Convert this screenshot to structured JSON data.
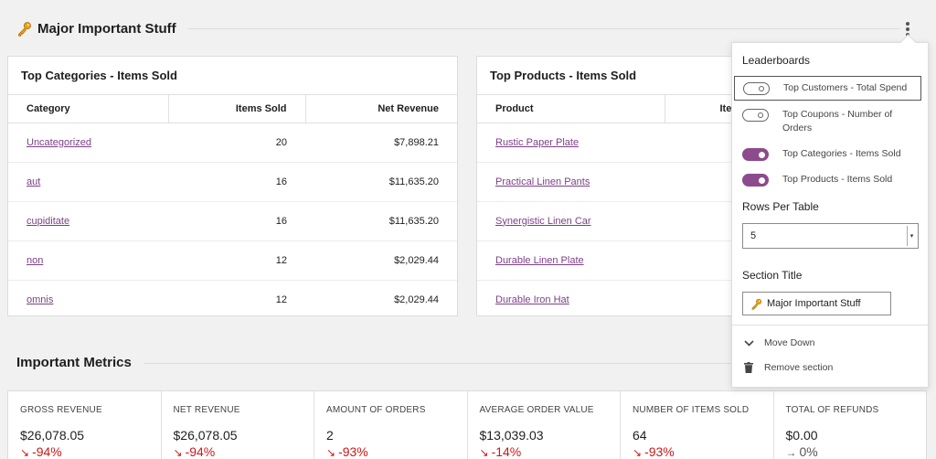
{
  "section": {
    "title": "Major Important Stuff"
  },
  "leaderboards": [
    {
      "title": "Top Categories - Items Sold",
      "columns": [
        "Category",
        "Items Sold",
        "Net Revenue"
      ],
      "rows": [
        [
          "Uncategorized",
          "20",
          "$7,898.21"
        ],
        [
          "aut",
          "16",
          "$11,635.20"
        ],
        [
          "cupiditate",
          "16",
          "$11,635.20"
        ],
        [
          "non",
          "12",
          "$2,029.44"
        ],
        [
          "omnis",
          "12",
          "$2,029.44"
        ]
      ]
    },
    {
      "title": "Top Products - Items Sold",
      "columns": [
        "Product",
        "Ite"
      ],
      "rows": [
        [
          "Rustic Paper Plate"
        ],
        [
          "Practical Linen Pants"
        ],
        [
          "Synergistic Linen Car"
        ],
        [
          "Durable Linen Plate"
        ],
        [
          "Durable Iron Hat"
        ]
      ]
    }
  ],
  "metrics": {
    "title": "Important Metrics",
    "items": [
      {
        "label": "Gross Revenue",
        "value": "$26,078.05",
        "delta": "-94%",
        "arrow": "↘"
      },
      {
        "label": "Net Revenue",
        "value": "$26,078.05",
        "delta": "-94%",
        "arrow": "↘"
      },
      {
        "label": "Amount of Orders",
        "value": "2",
        "delta": "-93%",
        "arrow": "↘"
      },
      {
        "label": "Average Order Value",
        "value": "$13,039.03",
        "delta": "-14%",
        "arrow": "↘"
      },
      {
        "label": "Number of Items Sold",
        "value": "64",
        "delta": "-93%",
        "arrow": "↘"
      },
      {
        "label": "Total of Refunds",
        "value": "$0.00",
        "delta": "0%",
        "arrow": "→"
      }
    ]
  },
  "popover": {
    "leaderboards_heading": "Leaderboards",
    "toggles": [
      {
        "label": "Top Customers - Total Spend",
        "on": false
      },
      {
        "label": "Top Coupons - Number of Orders",
        "on": false
      },
      {
        "label": "Top Categories - Items Sold",
        "on": true
      },
      {
        "label": "Top Products - Items Sold",
        "on": true
      }
    ],
    "rows_heading": "Rows Per Table",
    "rows_value": "5",
    "section_title_heading": "Section Title",
    "section_title_value": "Major Important Stuff",
    "move_down": "Move Down",
    "remove_section": "Remove section"
  },
  "colors": {
    "accent": "#8c4b8d",
    "link": "#7c3f86",
    "negative": "#cc1818",
    "background": "#f1f1f1"
  },
  "icons": [
    "key-icon",
    "more-vertical-icon",
    "chevron-down-icon",
    "trash-icon"
  ]
}
